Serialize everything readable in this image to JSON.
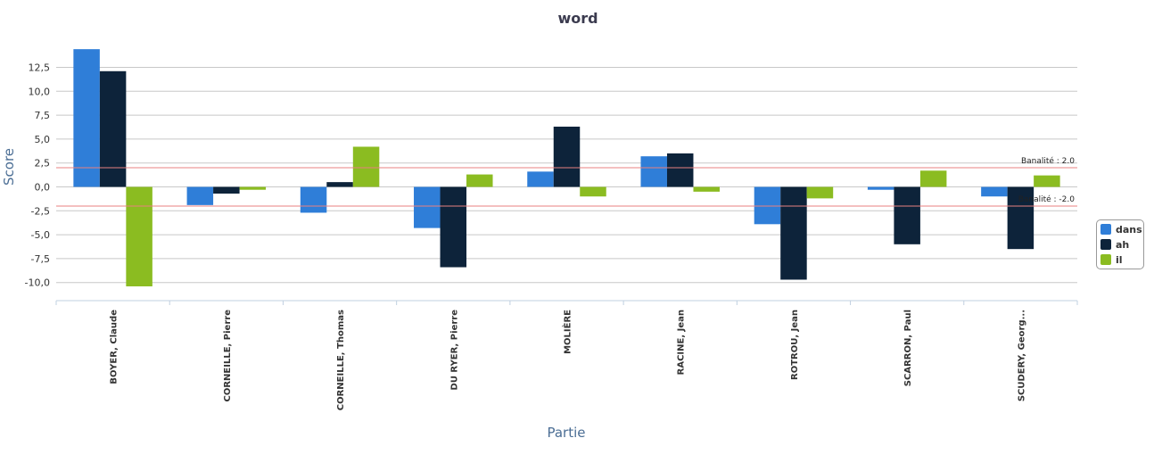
{
  "chart_data": {
    "type": "bar",
    "title": "word",
    "xlabel": "Partie",
    "ylabel": "Score",
    "ylim": [
      -11.5,
      15
    ],
    "yticks": [
      -10,
      -7.5,
      -5,
      -2.5,
      0,
      2.5,
      5,
      7.5,
      10,
      12.5
    ],
    "ytick_labels": [
      "-10,0",
      "-7,5",
      "-5,0",
      "-2,5",
      "0,0",
      "2,5",
      "5,0",
      "7,5",
      "10,0",
      "12,5"
    ],
    "grid": true,
    "legend_position": "right",
    "categories": [
      "BOYER, Claude",
      "CORNEILLE, Pierre",
      "CORNEILLE, Thomas",
      "DU RYER, Pierre",
      "MOLIÈRE",
      "RACINE, Jean",
      "ROTROU, Jean",
      "SCARRON, Paul",
      "SCUDERY, Georg..."
    ],
    "series": [
      {
        "name": "dans",
        "color": "#2f7ed8",
        "values": [
          14.4,
          -1.9,
          -2.7,
          -4.3,
          1.6,
          3.2,
          -3.9,
          -0.3,
          -1.0
        ]
      },
      {
        "name": "ah",
        "color": "#0d233a",
        "values": [
          12.1,
          -0.7,
          0.5,
          -8.4,
          6.3,
          3.5,
          -9.7,
          -6.0,
          -6.5
        ]
      },
      {
        "name": "il",
        "color": "#8bbc21",
        "values": [
          -10.4,
          -0.3,
          4.2,
          1.3,
          -1.0,
          -0.5,
          -1.2,
          1.7,
          1.2
        ]
      }
    ],
    "reference_lines": [
      {
        "value": 2.0,
        "label": "Banalité : 2.0",
        "color": "#e88080"
      },
      {
        "value": -2.0,
        "label": "Banalité : -2.0",
        "color": "#e88080"
      }
    ]
  }
}
